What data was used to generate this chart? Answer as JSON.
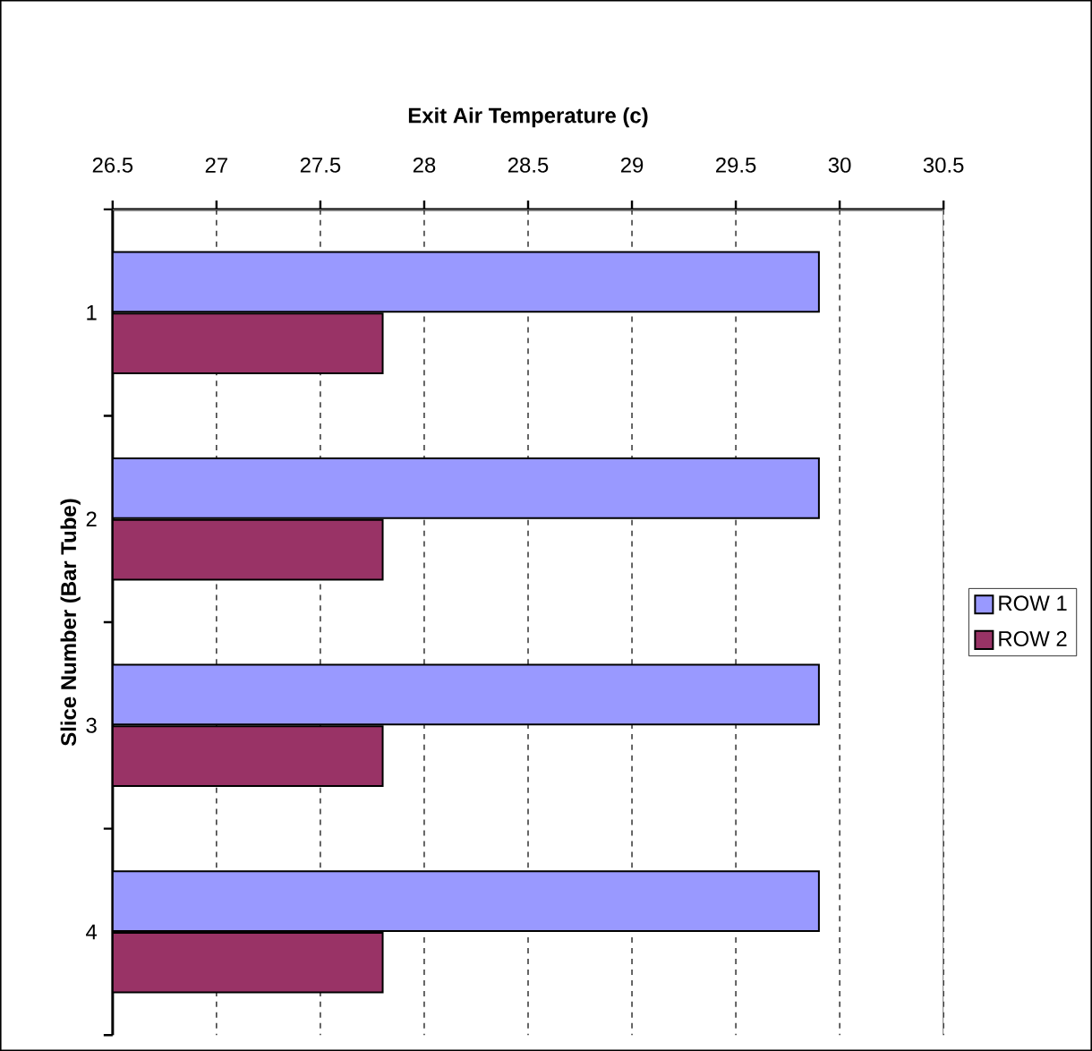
{
  "chart_data": {
    "type": "bar",
    "orientation": "horizontal",
    "xlabel": "Exit Air Temperature (c)",
    "ylabel": "Slice Number (Bar Tube)",
    "categories": [
      "1",
      "2",
      "3",
      "4"
    ],
    "series": [
      {
        "name": "ROW 1",
        "color": "#9999ff",
        "values": [
          29.9,
          29.9,
          29.9,
          29.9
        ]
      },
      {
        "name": "ROW 2",
        "color": "#993366",
        "values": [
          27.8,
          27.8,
          27.8,
          27.8
        ]
      }
    ],
    "xlim": [
      26.5,
      30.5
    ],
    "xticks": [
      26.5,
      27,
      27.5,
      28,
      28.5,
      29,
      29.5,
      30,
      30.5
    ],
    "grid": "x",
    "legend": "right"
  }
}
